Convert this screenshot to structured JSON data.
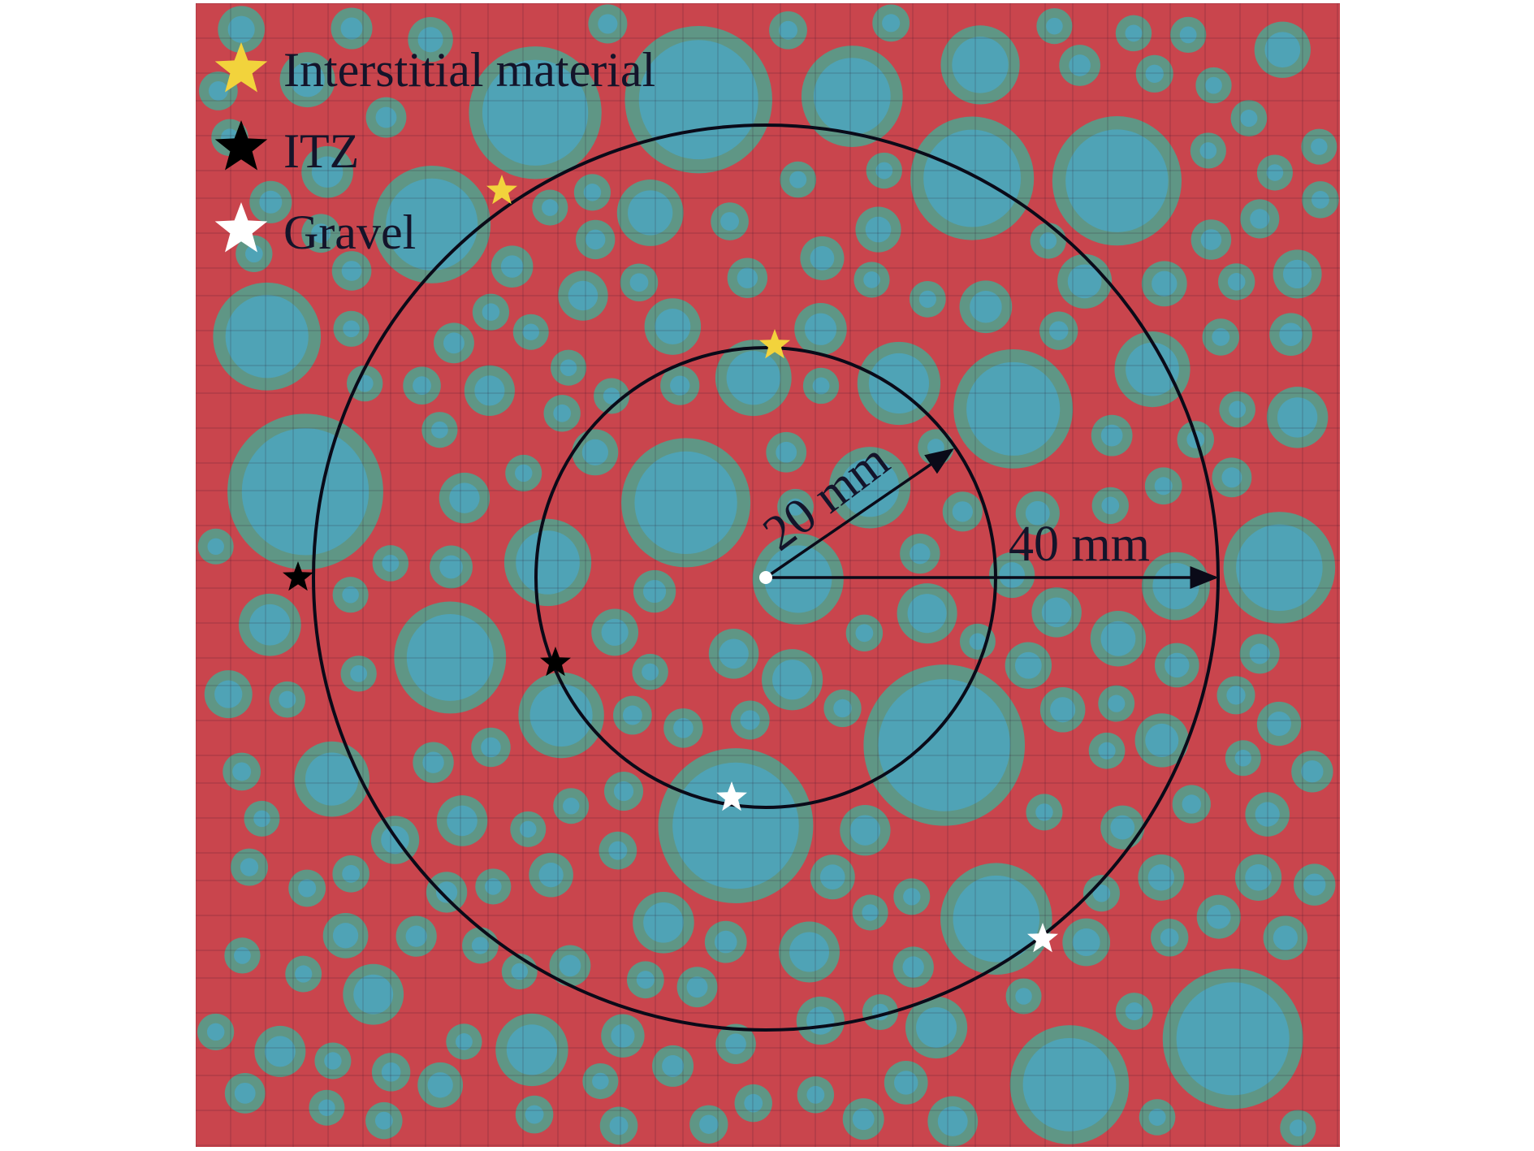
{
  "legend": {
    "items": [
      {
        "label": "Interstitial material",
        "color": "#f2d33c",
        "icon": "star-icon"
      },
      {
        "label": "ITZ",
        "color": "#000000",
        "icon": "star-icon"
      },
      {
        "label": "Gravel",
        "color": "#ffffff",
        "icon": "star-icon"
      }
    ]
  },
  "annotations": {
    "inner_radius_label": "20 mm",
    "outer_radius_label": "40 mm"
  },
  "colors": {
    "interstitial_material": "#c9454d",
    "itz": "#5f9685",
    "gravel": "#4fa3b6",
    "circle_line": "#0a0a18"
  }
}
